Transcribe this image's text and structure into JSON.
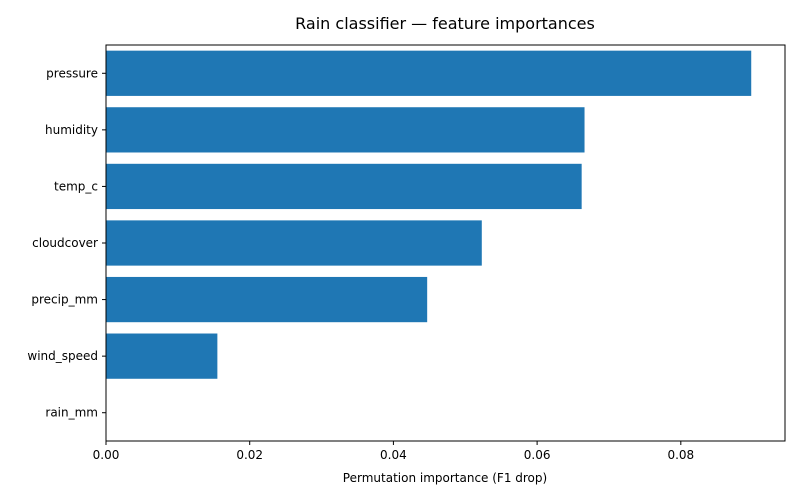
{
  "chart_data": {
    "type": "bar",
    "orientation": "horizontal",
    "title": "Rain classifier — feature importances",
    "xlabel": "Permutation importance (F1 drop)",
    "ylabel": "",
    "categories": [
      "pressure",
      "humidity",
      "temp_c",
      "cloudcover",
      "precip_mm",
      "wind_speed",
      "rain_mm"
    ],
    "values": [
      0.0898,
      0.0666,
      0.0662,
      0.0523,
      0.0447,
      0.0155,
      0.0
    ],
    "xlim": [
      0,
      0.0945
    ],
    "xticks": [
      0.0,
      0.02,
      0.04,
      0.06,
      0.08
    ],
    "xtick_labels": [
      "0.00",
      "0.02",
      "0.04",
      "0.06",
      "0.08"
    ],
    "bar_color": "#1f77b4",
    "grid": false
  }
}
